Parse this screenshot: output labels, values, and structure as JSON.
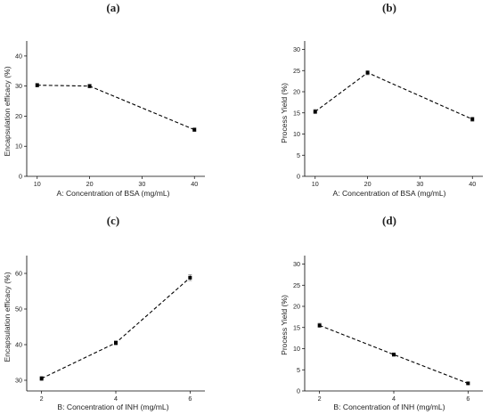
{
  "chart_data": [
    {
      "type": "line",
      "panel_label": "(a)",
      "xlabel": "A: Concentration of BSA (mg/mL)",
      "ylabel": "Encapsulation efficacy (%)",
      "x": [
        10,
        20,
        40
      ],
      "series": [
        {
          "values": [
            30.3,
            30.0,
            15.5
          ],
          "errors": [
            0.6,
            0.6,
            0.6
          ]
        }
      ],
      "xlim": [
        8,
        42
      ],
      "ylim": [
        0,
        45
      ],
      "xticks": [
        10,
        20,
        30,
        40
      ],
      "yticks": [
        0,
        10,
        20,
        30,
        40
      ],
      "line_style": "dashed",
      "marker": "square"
    },
    {
      "type": "line",
      "panel_label": "(b)",
      "xlabel": "A: Concentration of BSA (mg/mL)",
      "ylabel": "Process Yield (%)",
      "x": [
        10,
        20,
        40
      ],
      "series": [
        {
          "values": [
            15.3,
            24.5,
            13.5
          ],
          "errors": [
            0.5,
            0.5,
            0.5
          ]
        }
      ],
      "xlim": [
        8,
        42
      ],
      "ylim": [
        0,
        32
      ],
      "xticks": [
        10,
        20,
        30,
        40
      ],
      "yticks": [
        0,
        5,
        10,
        15,
        20,
        25,
        30
      ],
      "line_style": "dashed",
      "marker": "square"
    },
    {
      "type": "line",
      "panel_label": "(c)",
      "xlabel": "B: Concentration of INH (mg/mL)",
      "ylabel": "Encapsulation efficacy (%)",
      "x": [
        2,
        4,
        6
      ],
      "series": [
        {
          "values": [
            30.5,
            40.5,
            58.8
          ],
          "errors": [
            0.6,
            0.6,
            0.8
          ]
        }
      ],
      "xlim": [
        1.6,
        6.4
      ],
      "ylim": [
        27,
        65
      ],
      "xticks": [
        2,
        4,
        6
      ],
      "yticks": [
        30,
        40,
        50,
        60
      ],
      "line_style": "dashed",
      "marker": "square"
    },
    {
      "type": "line",
      "panel_label": "(d)",
      "xlabel": "B: Concentration of INH (mg/mL)",
      "ylabel": "Process Yield (%)",
      "x": [
        2,
        4,
        6
      ],
      "series": [
        {
          "values": [
            15.5,
            8.6,
            1.8
          ],
          "errors": [
            0.5,
            0.4,
            0.3
          ]
        }
      ],
      "xlim": [
        1.6,
        6.4
      ],
      "ylim": [
        0,
        32
      ],
      "xticks": [
        2,
        4,
        6
      ],
      "yticks": [
        0,
        5,
        10,
        15,
        20,
        25,
        30
      ],
      "line_style": "dashed",
      "marker": "square"
    }
  ]
}
